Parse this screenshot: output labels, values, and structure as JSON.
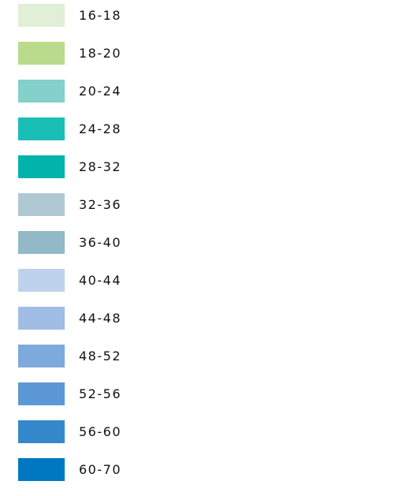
{
  "legend": {
    "items": [
      {
        "label": "16-18",
        "color": "#e0efd6"
      },
      {
        "label": "18-20",
        "color": "#badb8c"
      },
      {
        "label": "20-24",
        "color": "#84d0ca"
      },
      {
        "label": "24-28",
        "color": "#19bfb7"
      },
      {
        "label": "28-32",
        "color": "#00b3ab"
      },
      {
        "label": "32-36",
        "color": "#b0c8d2"
      },
      {
        "label": "36-40",
        "color": "#93b8c8"
      },
      {
        "label": "40-44",
        "color": "#bfd2ec"
      },
      {
        "label": "44-48",
        "color": "#a0bde6"
      },
      {
        "label": "48-52",
        "color": "#7ea9dc"
      },
      {
        "label": "52-56",
        "color": "#5c98d6"
      },
      {
        "label": "56-60",
        "color": "#3588cc"
      },
      {
        "label": "60-70",
        "color": "#0078c1"
      }
    ]
  }
}
